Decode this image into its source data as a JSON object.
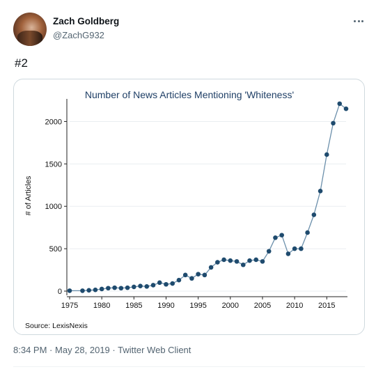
{
  "tweet": {
    "display_name": "Zach Goldberg",
    "handle": "@ZachG932",
    "text": "#2",
    "time": "8:34 PM",
    "date": "May 28, 2019",
    "client": "Twitter Web Client",
    "separator": "·"
  },
  "chart_data": {
    "type": "line",
    "title": "Number of News Articles Mentioning 'Whiteness'",
    "xlabel": "",
    "ylabel": "# of Articles",
    "source": "Source: LexisNexis",
    "xlim": [
      1975,
      2018
    ],
    "ylim": [
      0,
      2250
    ],
    "xticks": [
      1975,
      1980,
      1985,
      1990,
      1995,
      2000,
      2005,
      2010,
      2015
    ],
    "yticks": [
      0,
      500,
      1000,
      1500,
      2000
    ],
    "grid": true,
    "marker": "circle",
    "line_color": "#6b8fab",
    "marker_color": "#1f4b6e",
    "series": [
      {
        "x": [
          1975,
          1977,
          1978,
          1979,
          1980,
          1981,
          1982,
          1983,
          1984,
          1985,
          1986,
          1987,
          1988,
          1989,
          1990,
          1991,
          1992,
          1993,
          1994,
          1995,
          1996,
          1997,
          1998,
          1999,
          2000,
          2001,
          2002,
          2003,
          2004,
          2005,
          2006,
          2007,
          2008,
          2009,
          2010,
          2011,
          2012,
          2013,
          2014,
          2015,
          2016,
          2017,
          2018
        ],
        "values": [
          5,
          5,
          10,
          15,
          25,
          35,
          40,
          35,
          40,
          50,
          60,
          55,
          70,
          100,
          80,
          90,
          130,
          190,
          150,
          200,
          190,
          280,
          340,
          370,
          360,
          350,
          310,
          360,
          370,
          350,
          470,
          630,
          660,
          440,
          500,
          500,
          690,
          900,
          1180,
          1610,
          1980,
          2210,
          2150
        ]
      }
    ]
  }
}
